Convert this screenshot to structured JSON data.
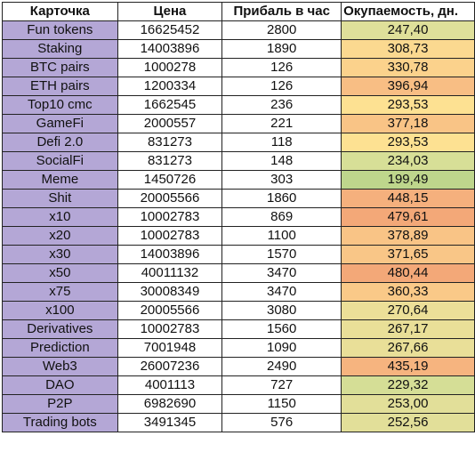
{
  "headers": [
    "Карточка",
    "Цена",
    "Прибаль в час",
    "Окупаемость, дн."
  ],
  "rows": [
    {
      "name": "Fun tokens",
      "price": "16625452",
      "profit": "2800",
      "payback": "247,40",
      "color": "#dfe09a"
    },
    {
      "name": "Staking",
      "price": "14003896",
      "profit": "1890",
      "payback": "308,73",
      "color": "#fbd990"
    },
    {
      "name": "BTC pairs",
      "price": "1000278",
      "profit": "126",
      "payback": "330,78",
      "color": "#fbd28c"
    },
    {
      "name": "ETH pairs",
      "price": "1200334",
      "profit": "126",
      "payback": "396,94",
      "color": "#f8be84"
    },
    {
      "name": "Top10 cmc",
      "price": "1662545",
      "profit": "236",
      "payback": "293,53",
      "color": "#fde192"
    },
    {
      "name": "GameFi",
      "price": "2000557",
      "profit": "221",
      "payback": "377,18",
      "color": "#f9c486"
    },
    {
      "name": "Defi 2.0",
      "price": "831273",
      "profit": "118",
      "payback": "293,53",
      "color": "#fde192"
    },
    {
      "name": "SocialFi",
      "price": "831273",
      "profit": "148",
      "payback": "234,03",
      "color": "#d7df97"
    },
    {
      "name": "Meme",
      "price": "1450726",
      "profit": "303",
      "payback": "199,49",
      "color": "#bed68c"
    },
    {
      "name": "Shit",
      "price": "20005566",
      "profit": "1860",
      "payback": "448,15",
      "color": "#f5b07d"
    },
    {
      "name": "x10",
      "price": "10002783",
      "profit": "869",
      "payback": "479,61",
      "color": "#f3a878"
    },
    {
      "name": "x20",
      "price": "10002783",
      "profit": "1100",
      "payback": "378,89",
      "color": "#f9c486"
    },
    {
      "name": "x30",
      "price": "14003896",
      "profit": "1570",
      "payback": "371,65",
      "color": "#f9c687"
    },
    {
      "name": "x50",
      "price": "40011132",
      "profit": "3470",
      "payback": "480,44",
      "color": "#f3a878"
    },
    {
      "name": "x75",
      "price": "30008349",
      "profit": "3470",
      "payback": "360,33",
      "color": "#fac988"
    },
    {
      "name": "x100",
      "price": "20005566",
      "profit": "3080",
      "payback": "270,64",
      "color": "#ecdf98"
    },
    {
      "name": "Derivatives",
      "price": "10002783",
      "profit": "1560",
      "payback": "267,17",
      "color": "#e9df98"
    },
    {
      "name": "Prediction",
      "price": "7001948",
      "profit": "1090",
      "payback": "267,66",
      "color": "#e9df98"
    },
    {
      "name": "Web3",
      "price": "26007236",
      "profit": "2490",
      "payback": "435,19",
      "color": "#f6b47f"
    },
    {
      "name": "DAO",
      "price": "4001113",
      "profit": "727",
      "payback": "229,32",
      "color": "#d5de96"
    },
    {
      "name": "P2P",
      "price": "6982690",
      "profit": "1150",
      "payback": "253,00",
      "color": "#e2df99"
    },
    {
      "name": "Trading bots",
      "price": "3491345",
      "profit": "576",
      "payback": "252,56",
      "color": "#e2df99"
    }
  ]
}
